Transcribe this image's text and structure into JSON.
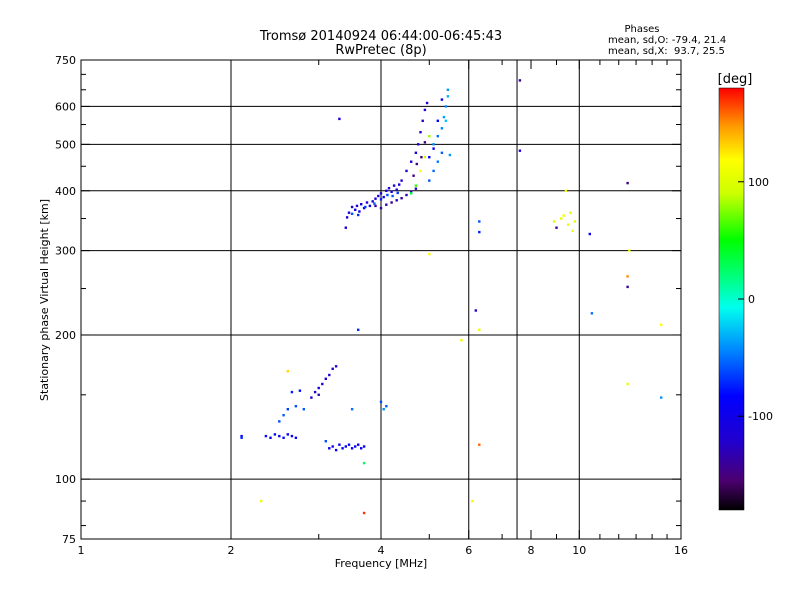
{
  "chart_data": {
    "type": "scatter",
    "title": "Tromsø 20140924 06:44:00-06:45:43",
    "subtitle": "RwPretec (8p)",
    "xlabel": "Frequency [MHz]",
    "ylabel": "Stationary phase Virtual Height [km]",
    "x_scale": "log",
    "y_scale": "log",
    "xlim": [
      1,
      16
    ],
    "ylim": [
      75,
      750
    ],
    "x_ticks": [
      1,
      2,
      4,
      6,
      8,
      10,
      16
    ],
    "x_tick_labels": [
      "1",
      "2",
      "4",
      "6",
      "8",
      "10",
      "16"
    ],
    "x_grid": [
      2,
      4,
      6,
      7.5,
      10
    ],
    "y_ticks": [
      75,
      100,
      200,
      300,
      400,
      500,
      600,
      750
    ],
    "y_tick_labels": [
      "75",
      "100",
      "200",
      "300",
      "400",
      "500",
      "600",
      "750"
    ],
    "y_grid": [
      100,
      200,
      300,
      400,
      500,
      600
    ],
    "grid": true,
    "phases_box": {
      "title": "Phases",
      "line1": "mean, sd,O: -79.4, 21.4",
      "line2": "mean, sd,X:  93.7, 25.5"
    },
    "colorbar": {
      "label": "[deg]",
      "range": [
        -180,
        180
      ],
      "ticks": [
        100,
        0,
        -100
      ],
      "tick_labels": [
        "100",
        "0",
        "-100"
      ],
      "placement": "right"
    },
    "points": [
      [
        3.4,
        335,
        -120
      ],
      [
        3.42,
        352,
        -115
      ],
      [
        3.45,
        360,
        -110
      ],
      [
        3.5,
        370,
        -118
      ],
      [
        3.55,
        365,
        -105
      ],
      [
        3.58,
        372,
        -112
      ],
      [
        3.62,
        362,
        -108
      ],
      [
        3.65,
        375,
        -100
      ],
      [
        3.7,
        368,
        -115
      ],
      [
        3.75,
        378,
        -110
      ],
      [
        3.8,
        372,
        -104
      ],
      [
        3.85,
        380,
        -120
      ],
      [
        3.9,
        385,
        -112
      ],
      [
        3.95,
        390,
        -108
      ],
      [
        4.0,
        395,
        -115
      ],
      [
        4.05,
        388,
        -100
      ],
      [
        4.1,
        400,
        -112
      ],
      [
        4.15,
        405,
        -118
      ],
      [
        4.2,
        398,
        -105
      ],
      [
        4.25,
        410,
        -110
      ],
      [
        4.3,
        402,
        -115
      ],
      [
        4.35,
        412,
        -108
      ],
      [
        3.5,
        358,
        -60
      ],
      [
        3.6,
        356,
        -70
      ],
      [
        3.72,
        370,
        -65
      ],
      [
        3.88,
        376,
        -55
      ],
      [
        4.0,
        384,
        -75
      ],
      [
        4.12,
        392,
        -62
      ],
      [
        4.22,
        390,
        -58
      ],
      [
        4.32,
        396,
        -68
      ],
      [
        3.9,
        372,
        -140
      ],
      [
        4.0,
        368,
        -135
      ],
      [
        4.1,
        374,
        -130
      ],
      [
        4.2,
        378,
        -145
      ],
      [
        4.3,
        382,
        -128
      ],
      [
        4.4,
        386,
        -138
      ],
      [
        4.5,
        392,
        -132
      ],
      [
        4.6,
        398,
        -140
      ],
      [
        4.7,
        404,
        -125
      ],
      [
        4.4,
        420,
        -120
      ],
      [
        4.5,
        440,
        -115
      ],
      [
        4.6,
        460,
        -110
      ],
      [
        4.7,
        480,
        -108
      ],
      [
        4.75,
        500,
        -112
      ],
      [
        4.8,
        530,
        -118
      ],
      [
        4.85,
        560,
        -120
      ],
      [
        4.9,
        590,
        -115
      ],
      [
        4.95,
        610,
        -112
      ],
      [
        4.65,
        430,
        -150
      ],
      [
        4.72,
        455,
        -145
      ],
      [
        4.82,
        470,
        -155
      ],
      [
        4.9,
        505,
        -150
      ],
      [
        4.6,
        395,
        30
      ],
      [
        4.7,
        410,
        60
      ],
      [
        4.8,
        440,
        120
      ],
      [
        4.9,
        470,
        90
      ],
      [
        5.0,
        520,
        80
      ],
      [
        5.1,
        500,
        -40
      ],
      [
        5.2,
        520,
        -50
      ],
      [
        5.3,
        540,
        -45
      ],
      [
        5.35,
        570,
        -35
      ],
      [
        5.4,
        600,
        -42
      ],
      [
        5.45,
        630,
        -30
      ],
      [
        5.45,
        650,
        -38
      ],
      [
        5.3,
        480,
        -55
      ],
      [
        5.2,
        460,
        -48
      ],
      [
        5.1,
        440,
        -52
      ],
      [
        5.0,
        420,
        -60
      ],
      [
        5.4,
        560,
        -25
      ],
      [
        5.5,
        475,
        -40
      ],
      [
        5.0,
        470,
        -90
      ],
      [
        5.1,
        490,
        -95
      ],
      [
        5.2,
        560,
        -85
      ],
      [
        5.3,
        620,
        -92
      ],
      [
        3.3,
        565,
        -110
      ],
      [
        7.6,
        680,
        -140
      ],
      [
        7.6,
        485,
        -115
      ],
      [
        6.3,
        345,
        -60
      ],
      [
        6.3,
        328,
        -75
      ],
      [
        6.2,
        225,
        -120
      ],
      [
        6.3,
        205,
        110
      ],
      [
        5.0,
        295,
        120
      ],
      [
        6.3,
        118,
        160
      ],
      [
        6.1,
        90,
        120
      ],
      [
        5.8,
        195,
        110
      ],
      [
        3.6,
        205,
        -70
      ],
      [
        8.9,
        345,
        100
      ],
      [
        9.0,
        335,
        -140
      ],
      [
        9.2,
        350,
        105
      ],
      [
        9.3,
        355,
        110
      ],
      [
        9.4,
        400,
        115
      ],
      [
        9.5,
        340,
        108
      ],
      [
        9.6,
        360,
        102
      ],
      [
        9.7,
        330,
        110
      ],
      [
        9.8,
        345,
        104
      ],
      [
        10.5,
        325,
        -100
      ],
      [
        10.6,
        222,
        -50
      ],
      [
        12.5,
        415,
        -150
      ],
      [
        12.6,
        300,
        110
      ],
      [
        12.5,
        265,
        150
      ],
      [
        12.5,
        252,
        -140
      ],
      [
        14.6,
        210,
        120
      ],
      [
        12.5,
        158,
        110
      ],
      [
        14.6,
        148,
        -40
      ],
      [
        2.1,
        123,
        -90
      ],
      [
        2.35,
        123,
        -80
      ],
      [
        2.4,
        122,
        -85
      ],
      [
        2.45,
        124,
        -82
      ],
      [
        2.5,
        123,
        -88
      ],
      [
        2.55,
        122,
        -80
      ],
      [
        2.6,
        124,
        -86
      ],
      [
        2.65,
        123,
        -90
      ],
      [
        2.7,
        122,
        -84
      ],
      [
        2.5,
        132,
        -60
      ],
      [
        2.55,
        136,
        -55
      ],
      [
        2.6,
        140,
        -65
      ],
      [
        2.7,
        142,
        -60
      ],
      [
        2.8,
        140,
        -58
      ],
      [
        2.65,
        152,
        -75
      ],
      [
        2.75,
        153,
        -80
      ],
      [
        2.9,
        148,
        -120
      ],
      [
        2.95,
        152,
        -115
      ],
      [
        3.0,
        155,
        -110
      ],
      [
        3.05,
        158,
        -120
      ],
      [
        3.1,
        162,
        -118
      ],
      [
        3.15,
        165,
        -125
      ],
      [
        3.2,
        170,
        -115
      ],
      [
        3.25,
        172,
        -120
      ],
      [
        3.15,
        116,
        -90
      ],
      [
        3.2,
        117,
        -95
      ],
      [
        3.25,
        115,
        -85
      ],
      [
        3.3,
        118,
        -90
      ],
      [
        3.35,
        116,
        -92
      ],
      [
        3.4,
        117,
        -88
      ],
      [
        3.45,
        118,
        -86
      ],
      [
        3.5,
        116,
        -90
      ],
      [
        3.55,
        117,
        -94
      ],
      [
        3.6,
        118,
        -88
      ],
      [
        3.65,
        116,
        -92
      ],
      [
        3.7,
        117,
        -90
      ],
      [
        3.5,
        140,
        -50
      ],
      [
        4.0,
        145,
        -60
      ],
      [
        4.1,
        142,
        -55
      ],
      [
        4.05,
        140,
        -40
      ],
      [
        3.7,
        108,
        30
      ],
      [
        3.7,
        85,
        170
      ],
      [
        2.3,
        90,
        110
      ],
      [
        2.6,
        168,
        130
      ],
      [
        2.1,
        122,
        -70
      ],
      [
        3.1,
        120,
        -60
      ],
      [
        3.0,
        150,
        -130
      ]
    ]
  }
}
